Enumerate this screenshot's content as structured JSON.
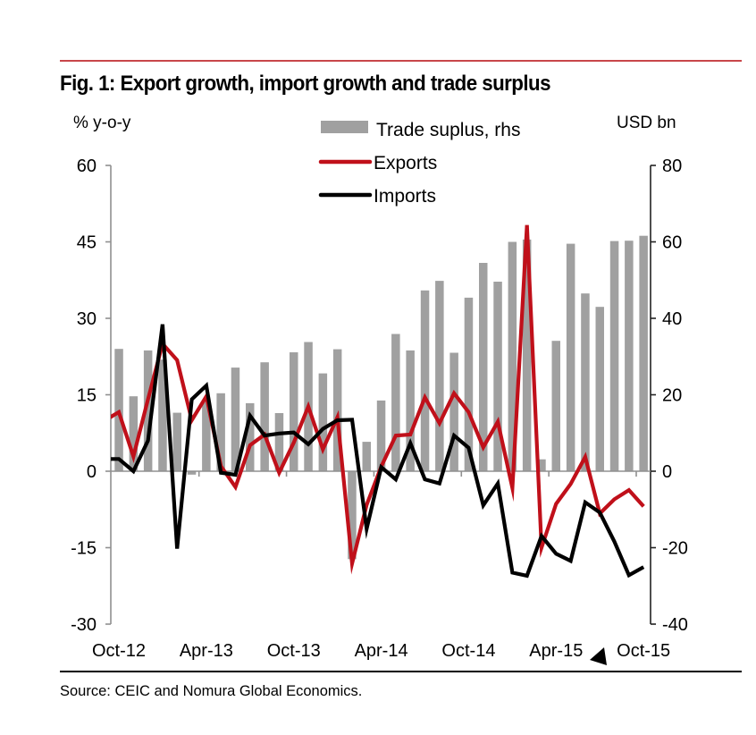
{
  "header": {
    "title": "Fig. 1: Export growth, import growth and trade surplus"
  },
  "footer": {
    "source": "Source: CEIC and Nomura Global Economics."
  },
  "colors": {
    "exports": "#c0101a",
    "imports": "#000000",
    "trade_surplus": "#a0a0a0",
    "rule_top": "#c8464a"
  },
  "cursor": {
    "icon": "mouse-pointer-icon"
  },
  "chart_data": {
    "type": "bar+line",
    "title": "Fig. 1: Export growth, import growth and trade surplus",
    "ylabel_left": "% y-o-y",
    "ylabel_right": "USD bn",
    "ylim_left": [
      -30,
      60
    ],
    "ylim_right": [
      -40,
      80
    ],
    "yticks_left": [
      "60",
      "45",
      "30",
      "15",
      "0",
      "-15",
      "-30"
    ],
    "yticks_left_values": [
      60,
      45,
      30,
      15,
      0,
      -15,
      -30
    ],
    "yticks_right": [
      "80",
      "60",
      "40",
      "20",
      "0",
      "-20",
      "-40"
    ],
    "yticks_right_values": [
      80,
      60,
      40,
      20,
      0,
      -20,
      -40
    ],
    "xtick_labels": [
      "Oct-12",
      "Apr-13",
      "Oct-13",
      "Apr-14",
      "Oct-14",
      "Apr-15",
      "Oct-15"
    ],
    "grid": false,
    "legend_position": "top-center",
    "categories": [
      "Oct-12",
      "Nov-12",
      "Dec-12",
      "Jan-13",
      "Feb-13",
      "Mar-13",
      "Apr-13",
      "May-13",
      "Jun-13",
      "Jul-13",
      "Aug-13",
      "Sep-13",
      "Oct-13",
      "Nov-13",
      "Dec-13",
      "Jan-14",
      "Feb-14",
      "Mar-14",
      "Apr-14",
      "May-14",
      "Jun-14",
      "Jul-14",
      "Aug-14",
      "Sep-14",
      "Oct-14",
      "Nov-14",
      "Dec-14",
      "Jan-15",
      "Feb-15",
      "Mar-15",
      "Apr-15",
      "May-15",
      "Jun-15",
      "Jul-15",
      "Aug-15",
      "Sep-15",
      "Oct-15"
    ],
    "line_lead_in": {
      "category": "Sep-12",
      "exports": 9.9,
      "imports": 2.4
    },
    "series": [
      {
        "name": "Trade suplus, rhs",
        "type": "bar",
        "axis": "right",
        "values": [
          32.0,
          19.6,
          31.6,
          29.2,
          15.3,
          -0.9,
          18.2,
          20.4,
          27.1,
          17.8,
          28.5,
          15.2,
          31.1,
          33.8,
          25.6,
          31.9,
          -23.0,
          7.7,
          18.5,
          35.9,
          31.6,
          47.3,
          49.8,
          31.0,
          45.4,
          54.5,
          49.6,
          60.0,
          60.6,
          3.1,
          34.1,
          59.5,
          46.5,
          43.0,
          60.2,
          60.3,
          61.6
        ]
      },
      {
        "name": "Exports",
        "type": "line",
        "axis": "left",
        "values": [
          11.6,
          2.9,
          14.1,
          25.0,
          21.8,
          10.0,
          14.7,
          1.0,
          -3.1,
          5.1,
          7.2,
          -0.3,
          5.6,
          12.7,
          4.3,
          10.6,
          -18.1,
          -6.6,
          0.9,
          7.0,
          7.2,
          14.5,
          9.4,
          15.3,
          11.6,
          4.7,
          9.7,
          -3.3,
          48.3,
          -15.0,
          -6.4,
          -2.5,
          2.8,
          -8.3,
          -5.5,
          -3.7,
          -6.9
        ]
      },
      {
        "name": "Imports",
        "type": "line",
        "axis": "left",
        "values": [
          2.4,
          0.0,
          6.0,
          28.8,
          -15.2,
          14.1,
          16.8,
          -0.3,
          -0.7,
          10.9,
          7.0,
          7.4,
          7.6,
          5.3,
          8.3,
          10.0,
          10.1,
          -11.3,
          0.8,
          -1.6,
          5.5,
          -1.6,
          -2.4,
          7.0,
          4.6,
          -6.7,
          -2.4,
          -19.9,
          -20.5,
          -12.7,
          -16.2,
          -17.6,
          -6.1,
          -8.1,
          -13.8,
          -20.4,
          -18.8
        ]
      }
    ]
  }
}
